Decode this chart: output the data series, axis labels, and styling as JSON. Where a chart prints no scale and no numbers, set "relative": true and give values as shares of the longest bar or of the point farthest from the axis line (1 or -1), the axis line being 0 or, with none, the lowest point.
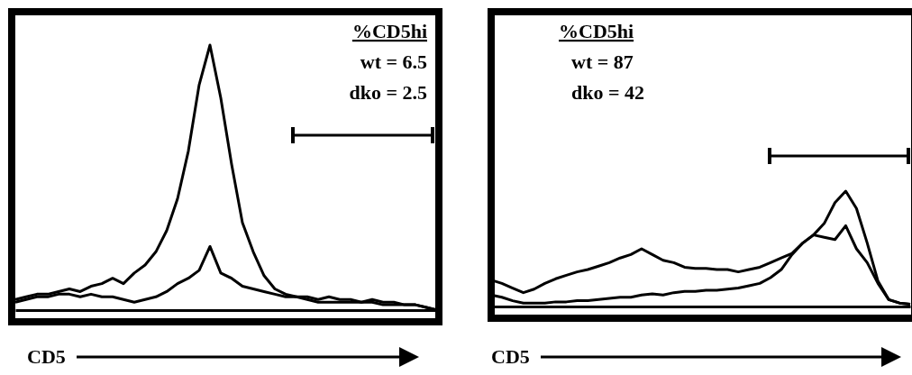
{
  "chart_data": [
    {
      "type": "line",
      "relative": true,
      "xlabel": "CD5",
      "annotations": [
        "%CD5hi",
        "wt = 6.5",
        "dko = 2.5"
      ],
      "categories": [
        null,
        null,
        null,
        null,
        null,
        null,
        null,
        null,
        null,
        null,
        null,
        null,
        null,
        null,
        null,
        null,
        null,
        null,
        null,
        null,
        null,
        null,
        null,
        null,
        null,
        null,
        null,
        null,
        null,
        null,
        null,
        null,
        null,
        null,
        null,
        null,
        null,
        null,
        null,
        null
      ],
      "series": [
        {
          "color": "#000000",
          "values": [
            0.04,
            0.05,
            0.06,
            0.06,
            0.07,
            0.08,
            0.07,
            0.09,
            0.1,
            0.12,
            0.1,
            0.14,
            0.17,
            0.22,
            0.3,
            0.42,
            0.6,
            0.85,
            1,
            0.8,
            0.55,
            0.33,
            0.22,
            0.13,
            0.08,
            0.06,
            0.05,
            0.05,
            0.04,
            0.05,
            0.04,
            0.04,
            0.03,
            0.04,
            0.03,
            0.03,
            0.02,
            0.02,
            0.01,
            0
          ]
        },
        {
          "color": "#000000",
          "values": [
            0.03,
            0.04,
            0.05,
            0.05,
            0.06,
            0.06,
            0.05,
            0.06,
            0.05,
            0.05,
            0.04,
            0.03,
            0.04,
            0.05,
            0.07,
            0.1,
            0.12,
            0.15,
            0.24,
            0.14,
            0.12,
            0.09,
            0.08,
            0.07,
            0.06,
            0.05,
            0.05,
            0.04,
            0.03,
            0.03,
            0.03,
            0.03,
            0.03,
            0.03,
            0.02,
            0.02,
            0.02,
            0.02,
            0.01,
            0
          ]
        }
      ]
    },
    {
      "type": "line",
      "relative": true,
      "xlabel": "CD5",
      "annotations": [
        "%CD5hi",
        "wt = 87",
        "dko = 42"
      ],
      "categories": [
        null,
        null,
        null,
        null,
        null,
        null,
        null,
        null,
        null,
        null,
        null,
        null,
        null,
        null,
        null,
        null,
        null,
        null,
        null,
        null,
        null,
        null,
        null,
        null,
        null,
        null,
        null,
        null,
        null,
        null,
        null,
        null,
        null,
        null,
        null,
        null,
        null,
        null,
        null,
        null
      ],
      "series": [
        {
          "color": "#000000",
          "values": [
            0.23,
            0.2,
            0.16,
            0.12,
            0.15,
            0.2,
            0.24,
            0.27,
            0.3,
            0.32,
            0.35,
            0.38,
            0.42,
            0.45,
            0.5,
            0.45,
            0.4,
            0.38,
            0.34,
            0.33,
            0.33,
            0.32,
            0.32,
            0.3,
            0.32,
            0.34,
            0.38,
            0.42,
            0.46,
            0.55,
            0.62,
            0.6,
            0.58,
            0.7,
            0.5,
            0.38,
            0.2,
            0.06,
            0.03,
            0.02
          ]
        },
        {
          "color": "#000000",
          "values": [
            0.1,
            0.08,
            0.05,
            0.03,
            0.03,
            0.03,
            0.04,
            0.04,
            0.05,
            0.05,
            0.06,
            0.07,
            0.08,
            0.08,
            0.1,
            0.11,
            0.1,
            0.12,
            0.13,
            0.13,
            0.14,
            0.14,
            0.15,
            0.16,
            0.18,
            0.2,
            0.25,
            0.32,
            0.45,
            0.55,
            0.62,
            0.72,
            0.9,
            1,
            0.85,
            0.55,
            0.22,
            0.06,
            0.03,
            0.02
          ]
        }
      ]
    }
  ]
}
